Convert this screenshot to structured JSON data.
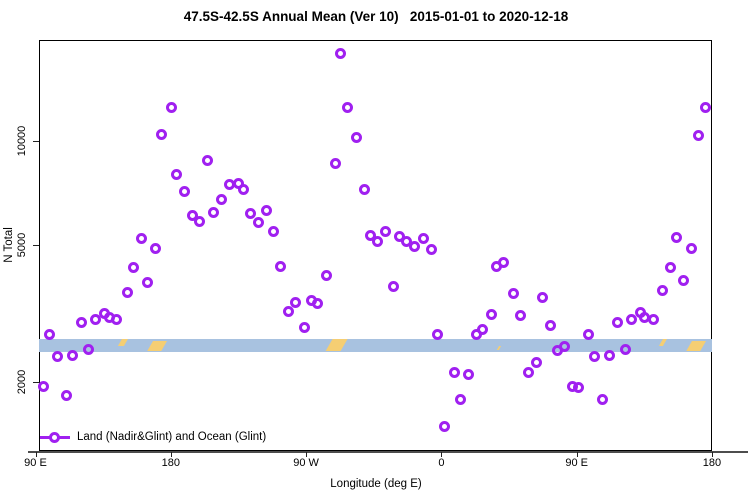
{
  "title": "47.5S-42.5S Annual Mean (Ver 10)   2015-01-01 to 2020-12-18",
  "legend": {
    "label": "Land (Nadir&Glint) and Ocean (Glint)"
  },
  "colors": {
    "marker": "#A020F0",
    "band_ocean": "#A8C2E0",
    "band_land": "#F5CE73",
    "axis_line": "#4d4d4d",
    "box": "#000000"
  },
  "chart_data": {
    "type": "scatter",
    "title": "47.5S-42.5S Annual Mean (Ver 10)   2015-01-01 to 2020-12-18",
    "xlabel": "Longitude (deg E)",
    "ylabel": "N Total",
    "y_scale": "log10",
    "ylim": [
      1255,
      19650
    ],
    "x_axis_note": "x value = degrees eastward from 90E; axis spans 450 deg so longitudes 90E-180 repeat at both ends",
    "x_ticks": [
      {
        "a": 0,
        "label": "90 E"
      },
      {
        "a": 90,
        "label": "180"
      },
      {
        "a": 180,
        "label": "90 W"
      },
      {
        "a": 270,
        "label": "0"
      },
      {
        "a": 360,
        "label": "90 E"
      },
      {
        "a": 450,
        "label": "180"
      }
    ],
    "y_ticks": [
      {
        "v": 2000,
        "label": "2000"
      },
      {
        "v": 5000,
        "label": "5000"
      },
      {
        "v": 10000,
        "label": "10000"
      }
    ],
    "legend_position": "bottom-left",
    "grid": false,
    "points": [
      [
        5.2,
        1935
      ],
      [
        9.6,
        2755
      ],
      [
        14.8,
        2365
      ],
      [
        20.3,
        1830
      ],
      [
        24.7,
        2390
      ],
      [
        30.5,
        2985
      ],
      [
        35.1,
        2480
      ],
      [
        39.8,
        3030
      ],
      [
        45.6,
        3165
      ],
      [
        48.9,
        3080
      ],
      [
        54.0,
        3030
      ],
      [
        60.9,
        3645
      ],
      [
        64.9,
        4310
      ],
      [
        70.2,
        5215
      ],
      [
        74.4,
        3900
      ],
      [
        79.5,
        4870
      ],
      [
        83.9,
        10460
      ],
      [
        90.6,
        12590
      ],
      [
        93.8,
        8020
      ],
      [
        99.0,
        7130
      ],
      [
        104.6,
        6090
      ],
      [
        109.0,
        5860
      ],
      [
        114.3,
        8790
      ],
      [
        118.3,
        6210
      ],
      [
        123.9,
        6770
      ],
      [
        128.9,
        7490
      ],
      [
        134.9,
        7560
      ],
      [
        138.2,
        7240
      ],
      [
        142.7,
        6165
      ],
      [
        148.2,
        5830
      ],
      [
        153.8,
        6290
      ],
      [
        158.2,
        5480
      ],
      [
        163.3,
        4325
      ],
      [
        168.2,
        3200
      ],
      [
        173.1,
        3400
      ],
      [
        178.8,
        2875
      ],
      [
        183.3,
        3460
      ],
      [
        187.7,
        3370
      ],
      [
        193.7,
        4085
      ],
      [
        199.4,
        8600
      ],
      [
        203.2,
        17960
      ],
      [
        207.4,
        12570
      ],
      [
        213.2,
        10260
      ],
      [
        218.7,
        7240
      ],
      [
        223.0,
        5320
      ],
      [
        227.4,
        5115
      ],
      [
        233.0,
        5465
      ],
      [
        238.0,
        3795
      ],
      [
        242.0,
        5285
      ],
      [
        246.9,
        5135
      ],
      [
        252.0,
        4945
      ],
      [
        258.0,
        5205
      ],
      [
        263.1,
        4860
      ],
      [
        267.3,
        2745
      ],
      [
        271.8,
        1485
      ],
      [
        278.4,
        2135
      ],
      [
        282.8,
        1775
      ],
      [
        287.9,
        2100
      ],
      [
        293.5,
        2745
      ],
      [
        297.1,
        2835
      ],
      [
        303.0,
        3135
      ],
      [
        306.8,
        4335
      ],
      [
        311.6,
        4435
      ],
      [
        317.9,
        3610
      ],
      [
        322.3,
        3115
      ],
      [
        327.9,
        2125
      ],
      [
        333.0,
        2280
      ],
      [
        337.2,
        3530
      ],
      [
        342.3,
        2920
      ],
      [
        347.1,
        2465
      ],
      [
        351.6,
        2540
      ],
      [
        357.5,
        1945
      ],
      [
        361.5,
        1930
      ],
      [
        367.7,
        2755
      ],
      [
        371.7,
        2365
      ],
      [
        377.0,
        1775
      ],
      [
        381.7,
        2390
      ],
      [
        387.3,
        2985
      ],
      [
        392.2,
        2480
      ],
      [
        396.6,
        3030
      ],
      [
        402.3,
        3190
      ],
      [
        405.0,
        3080
      ],
      [
        411.0,
        3030
      ],
      [
        417.0,
        3685
      ],
      [
        422.5,
        4305
      ],
      [
        426.5,
        5240
      ],
      [
        430.9,
        3935
      ],
      [
        436.5,
        4875
      ],
      [
        441.3,
        10430
      ],
      [
        446.0,
        12590
      ]
    ],
    "map_band": {
      "description": "light blue latitude-strip map with yellow land patches",
      "value_range": [
        2450,
        2660
      ],
      "land_patches": [
        {
          "a0": 56.5,
          "a1": 60.5,
          "top": 0.0,
          "h": 0.55
        },
        {
          "a0": 76.0,
          "a1": 85.0,
          "top": 0.15,
          "h": 0.85
        },
        {
          "a0": 195.0,
          "a1": 205.0,
          "top": 0.0,
          "h": 1.0
        },
        {
          "a0": 307.5,
          "a1": 309.0,
          "top": 0.55,
          "h": 0.3
        },
        {
          "a0": 416.0,
          "a1": 418.5,
          "top": 0.0,
          "h": 0.55
        },
        {
          "a0": 435.0,
          "a1": 444.0,
          "top": 0.15,
          "h": 0.85
        }
      ]
    }
  }
}
